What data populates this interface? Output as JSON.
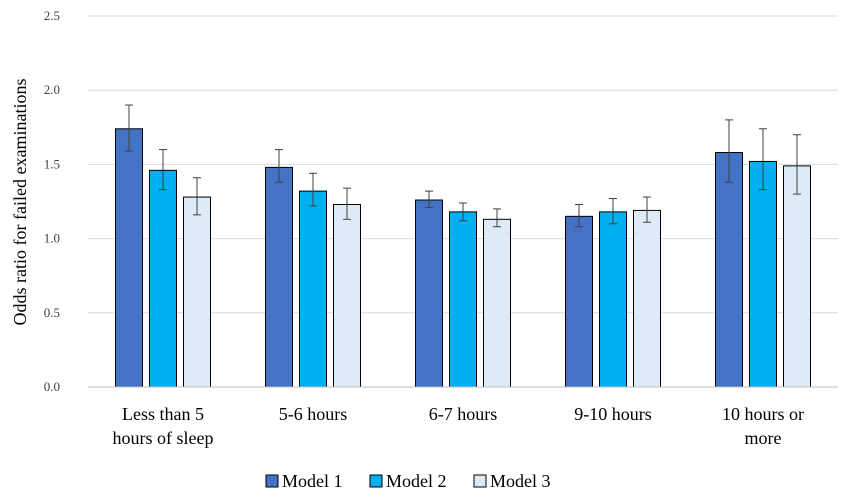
{
  "chart_data": {
    "type": "bar",
    "title": "",
    "xlabel": "",
    "ylabel": "Odds ratio for failed examinations",
    "ylim": [
      0,
      2.5
    ],
    "yticks": [
      "0.0",
      "0.5",
      "1.0",
      "1.5",
      "2.0",
      "2.5"
    ],
    "grid": true,
    "legend_position": "bottom",
    "categories": [
      [
        "Less than 5",
        "hours of sleep"
      ],
      [
        "5-6 hours"
      ],
      [
        "6-7 hours"
      ],
      [
        "9-10 hours"
      ],
      [
        "10 hours or",
        "more"
      ]
    ],
    "series": [
      {
        "name": "Model 1",
        "color": "#4472C4",
        "values": [
          1.74,
          1.48,
          1.26,
          1.15,
          1.58
        ],
        "err_low": [
          1.59,
          1.38,
          1.21,
          1.08,
          1.38
        ],
        "err_high": [
          1.9,
          1.6,
          1.32,
          1.23,
          1.8
        ]
      },
      {
        "name": "Model 2",
        "color": "#00B0F0",
        "values": [
          1.46,
          1.32,
          1.18,
          1.18,
          1.52
        ],
        "err_low": [
          1.33,
          1.22,
          1.12,
          1.1,
          1.33
        ],
        "err_high": [
          1.6,
          1.44,
          1.24,
          1.27,
          1.74
        ]
      },
      {
        "name": "Model 3",
        "color": "#DEEBF7",
        "values": [
          1.28,
          1.23,
          1.13,
          1.19,
          1.49
        ],
        "err_low": [
          1.16,
          1.13,
          1.08,
          1.11,
          1.3
        ],
        "err_high": [
          1.41,
          1.34,
          1.2,
          1.28,
          1.7
        ]
      }
    ]
  }
}
